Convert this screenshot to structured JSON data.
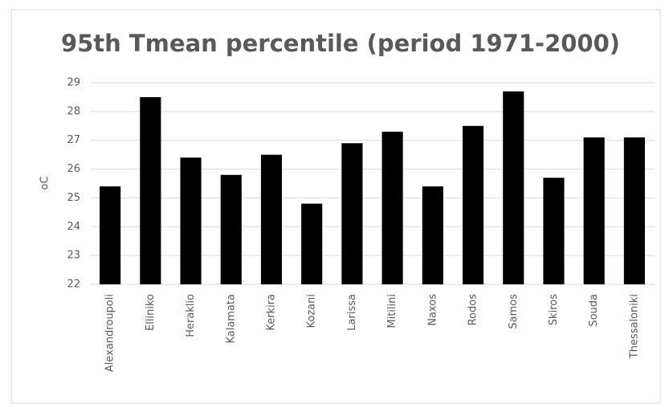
{
  "chart_data": {
    "type": "bar",
    "title": "95th Tmean percentile (period 1971-2000)",
    "y_label": "oC",
    "categories": [
      "Alexandroupoli",
      "Elliniko",
      "Heraklio",
      "Kalamata",
      "Kerkira",
      "Kozani",
      "Larissa",
      "Mitilini",
      "Naxos",
      "Rodos",
      "Samos",
      "Skiros",
      "Souda",
      "Thessaloniki"
    ],
    "values": [
      25.4,
      28.5,
      26.4,
      25.8,
      26.5,
      24.8,
      26.9,
      27.3,
      25.4,
      27.5,
      28.7,
      25.7,
      27.1,
      27.1
    ],
    "color": "#000000",
    "ylim": [
      22,
      29
    ],
    "yticks": [
      22,
      23,
      24,
      25,
      26,
      27,
      28,
      29
    ],
    "grid": true
  }
}
